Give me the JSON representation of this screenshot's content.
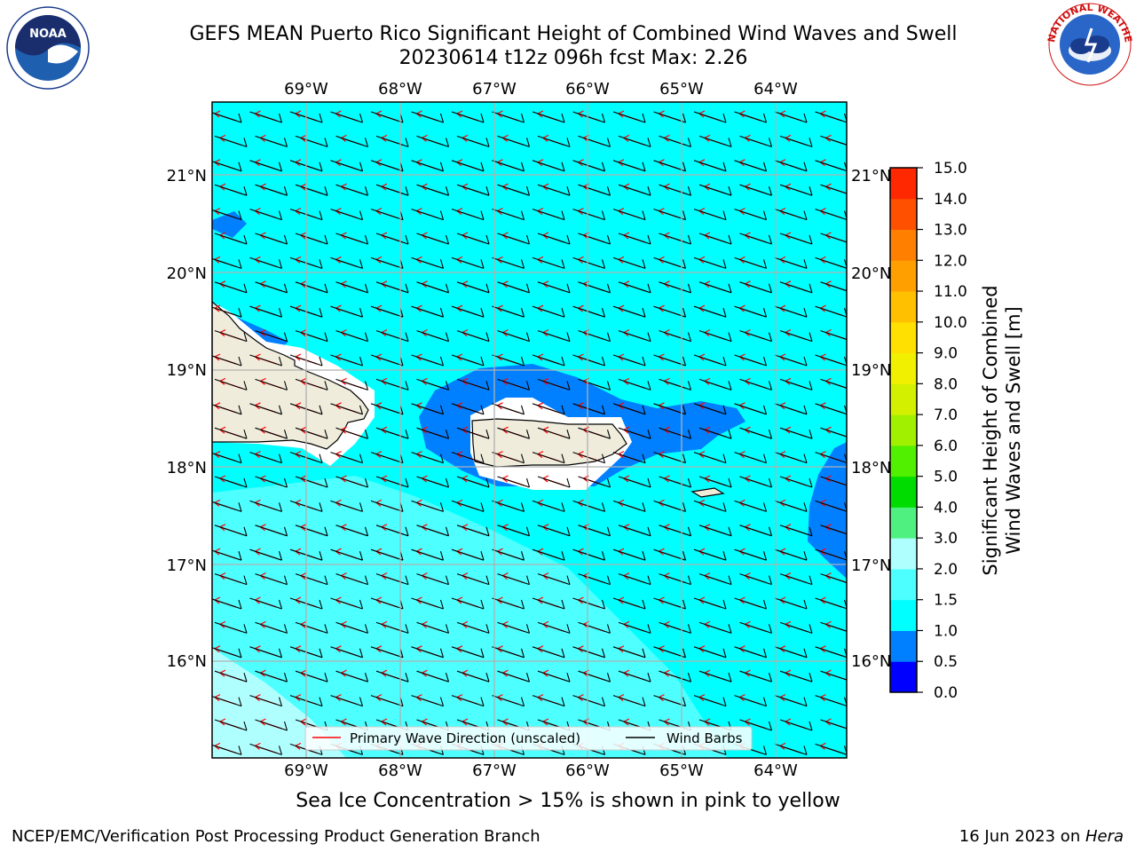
{
  "header": {
    "title_line1": "GEFS MEAN Puerto Rico Significant Height of Combined Wind Waves and Swell",
    "title_line2": "20230614 t12z 096h fcst   Max: 2.26"
  },
  "logos": {
    "noaa_text": "NOAA",
    "nws_text": "NATIONAL WEATHER SERVICE"
  },
  "map": {
    "lon_labels": [
      "69°W",
      "68°W",
      "67°W",
      "66°W",
      "65°W",
      "64°W"
    ],
    "lat_labels": [
      "21°N",
      "20°N",
      "19°N",
      "18°N",
      "17°N",
      "16°N"
    ],
    "legend": {
      "wave_label": "Primary Wave Direction (unscaled)",
      "barb_label": "Wind Barbs"
    },
    "colors": {
      "ocean_main": "#00ffff",
      "ocean_band": "#4dffff",
      "ocean_light": "#b0ffff",
      "low_wave": "#0080ff",
      "land": "#efecdc",
      "arrow": "#ff0000",
      "barb": "#000000"
    }
  },
  "colorbar": {
    "label_line1": "Significant Height of Combined",
    "label_line2": "Wind Waves and Swell [m]",
    "ticks": [
      "0.0",
      "0.5",
      "1.0",
      "1.5",
      "2.0",
      "3.0",
      "4.0",
      "5.0",
      "6.0",
      "7.0",
      "8.0",
      "9.0",
      "10.0",
      "11.0",
      "12.0",
      "13.0",
      "14.0",
      "15.0"
    ],
    "colors": [
      "#0000ff",
      "#0080ff",
      "#00ffff",
      "#4dffff",
      "#b0ffff",
      "#50f080",
      "#00dc00",
      "#50f000",
      "#a0f000",
      "#d2f000",
      "#f0f000",
      "#ffe000",
      "#ffc000",
      "#ffa000",
      "#ff8000",
      "#ff5000",
      "#ff2800"
    ]
  },
  "caption": "Sea Ice Concentration > 15% is shown in pink to yellow",
  "footer": {
    "left": "NCEP/EMC/Verification Post Processing Product Generation Branch",
    "right_prefix": "16 Jun 2023 on ",
    "right_italic": "Hera"
  }
}
